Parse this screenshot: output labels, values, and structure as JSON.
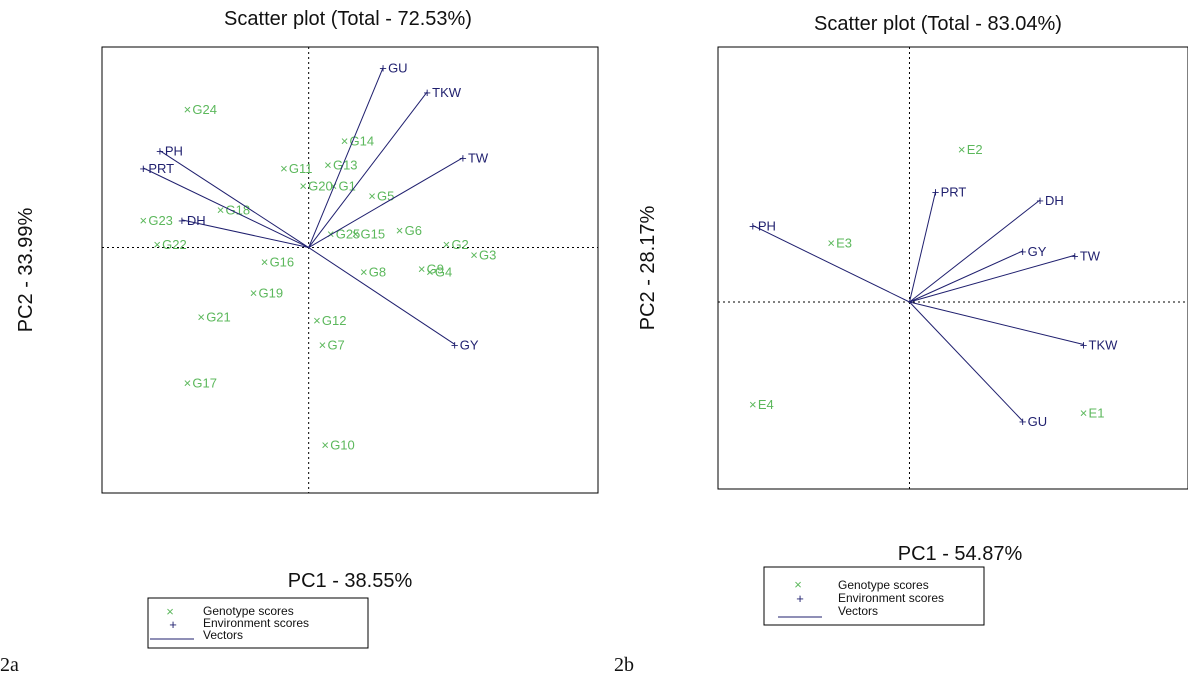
{
  "colors": {
    "genotype": "#5cb85c",
    "environment": "#1f1f6e",
    "vector": "#1f1f6e",
    "axis": "#000000"
  },
  "legend": {
    "genotype": "Genotype scores",
    "environment": "Environment scores",
    "vectors": "Vectors"
  },
  "chart_data": [
    {
      "type": "scatter",
      "panel_label": "2a",
      "title": "Scatter plot (Total - 72.53%)",
      "xlabel": "PC1 - 38.55%",
      "ylabel": "PC2 - 33.99%",
      "xlim": [
        -7.5,
        10.5
      ],
      "ylim": [
        -7.1,
        5.8
      ],
      "grid": false,
      "reference_lines": "dotted lines at x=0 and y=0",
      "legend_position": "bottom",
      "series": [
        {
          "name": "Genotype scores",
          "marker": "x",
          "points": [
            {
              "label": "G24",
              "x": -4.4,
              "y": 4.0
            },
            {
              "label": "G14",
              "x": 1.3,
              "y": 3.1
            },
            {
              "label": "G11",
              "x": -0.9,
              "y": 2.3
            },
            {
              "label": "G13",
              "x": 0.7,
              "y": 2.4
            },
            {
              "label": "G20",
              "x": -0.2,
              "y": 1.8
            },
            {
              "label": "G1",
              "x": 0.9,
              "y": 1.8
            },
            {
              "label": "G5",
              "x": 2.3,
              "y": 1.5
            },
            {
              "label": "G18",
              "x": -3.2,
              "y": 1.1
            },
            {
              "label": "G23",
              "x": -6.0,
              "y": 0.8
            },
            {
              "label": "G25",
              "x": 0.8,
              "y": 0.4
            },
            {
              "label": "G15",
              "x": 1.7,
              "y": 0.4
            },
            {
              "label": "G6",
              "x": 3.3,
              "y": 0.5
            },
            {
              "label": "G22",
              "x": -5.5,
              "y": 0.1
            },
            {
              "label": "G2",
              "x": 5.0,
              "y": 0.1
            },
            {
              "label": "G3",
              "x": 6.0,
              "y": -0.2
            },
            {
              "label": "G16",
              "x": -1.6,
              "y": -0.4
            },
            {
              "label": "G8",
              "x": 2.0,
              "y": -0.7
            },
            {
              "label": "G9",
              "x": 4.1,
              "y": -0.6
            },
            {
              "label": "G4",
              "x": 4.4,
              "y": -0.7
            },
            {
              "label": "G19",
              "x": -2.0,
              "y": -1.3
            },
            {
              "label": "G21",
              "x": -3.9,
              "y": -2.0
            },
            {
              "label": "G12",
              "x": 0.3,
              "y": -2.1
            },
            {
              "label": "G7",
              "x": 0.5,
              "y": -2.8
            },
            {
              "label": "G17",
              "x": -4.4,
              "y": -3.9
            },
            {
              "label": "G10",
              "x": 0.6,
              "y": -5.7
            }
          ]
        },
        {
          "name": "Environment scores",
          "marker": "+",
          "vectors": true,
          "points": [
            {
              "label": "GU",
              "x": 2.7,
              "y": 5.2
            },
            {
              "label": "TKW",
              "x": 4.3,
              "y": 4.5
            },
            {
              "label": "TW",
              "x": 5.6,
              "y": 2.6
            },
            {
              "label": "PH",
              "x": -5.4,
              "y": 2.8
            },
            {
              "label": "PRT",
              "x": -6.0,
              "y": 2.3
            },
            {
              "label": "DH",
              "x": -4.6,
              "y": 0.8
            },
            {
              "label": "GY",
              "x": 5.3,
              "y": -2.8
            }
          ]
        }
      ]
    },
    {
      "type": "scatter",
      "panel_label": "2b",
      "title": "Scatter plot (Total - 83.04%)",
      "xlabel": "PC1 - 54.87%",
      "ylabel": "PC2 - 28.17%",
      "xlim": [
        -2.2,
        3.2
      ],
      "ylim": [
        -2.2,
        3.0
      ],
      "grid": false,
      "reference_lines": "dotted lines at x=0 and y=0",
      "legend_position": "bottom",
      "series": [
        {
          "name": "Genotype scores",
          "marker": "x",
          "points": [
            {
              "label": "E2",
              "x": 0.6,
              "y": 1.8
            },
            {
              "label": "E3",
              "x": -0.9,
              "y": 0.7
            },
            {
              "label": "E4",
              "x": -1.8,
              "y": -1.2
            },
            {
              "label": "E1",
              "x": 2.0,
              "y": -1.3
            }
          ]
        },
        {
          "name": "Environment scores",
          "marker": "+",
          "vectors": true,
          "points": [
            {
              "label": "PRT",
              "x": 0.3,
              "y": 1.3
            },
            {
              "label": "DH",
              "x": 1.5,
              "y": 1.2
            },
            {
              "label": "PH",
              "x": -1.8,
              "y": 0.9
            },
            {
              "label": "GY",
              "x": 1.3,
              "y": 0.6
            },
            {
              "label": "TW",
              "x": 1.9,
              "y": 0.55
            },
            {
              "label": "TKW",
              "x": 2.0,
              "y": -0.5
            },
            {
              "label": "GU",
              "x": 1.3,
              "y": -1.4
            }
          ]
        }
      ]
    }
  ]
}
